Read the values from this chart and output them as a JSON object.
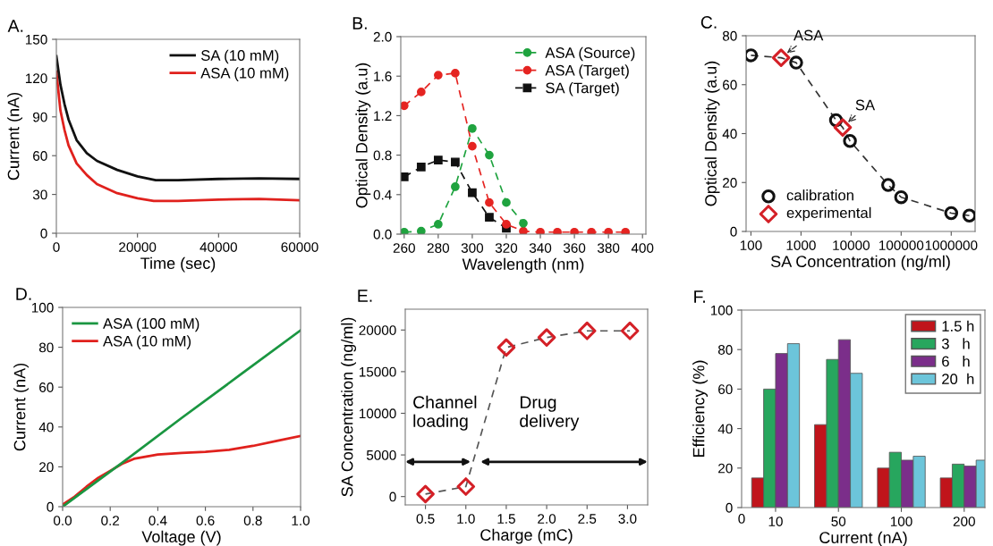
{
  "chart_data": [
    {
      "type": "line",
      "title": "A.",
      "xlabel": "Time (sec)",
      "ylabel": "Current (nA)",
      "xlim": [
        0,
        60000
      ],
      "xticks": [
        0,
        20000,
        40000,
        60000
      ],
      "ylim": [
        0,
        150
      ],
      "yticks": [
        0,
        30,
        60,
        90,
        120,
        150
      ],
      "legend": "top right",
      "series": [
        {
          "name": "SA (10 mM)",
          "color": "#111111",
          "x": [
            0,
            1000,
            2000,
            3000,
            5000,
            7500,
            10000,
            15000,
            20000,
            24500,
            30000,
            40000,
            50000,
            60000
          ],
          "values": [
            137,
            115,
            100,
            88,
            72,
            62,
            56,
            49,
            44,
            41,
            41,
            42,
            42.5,
            42
          ]
        },
        {
          "name": "ASA (10 mM)",
          "color": "#e0211d",
          "x": [
            0,
            1000,
            2000,
            3000,
            5000,
            7500,
            10000,
            15000,
            20000,
            24000,
            30000,
            40000,
            50000,
            60000
          ],
          "values": [
            125,
            95,
            80,
            68,
            54,
            45,
            38,
            31,
            27,
            25,
            25,
            26,
            26.5,
            25.5
          ]
        }
      ]
    },
    {
      "type": "line",
      "title": "B.",
      "xlabel": "Wavelength (nm)",
      "ylabel": "Optical Density (a.u)",
      "xlim": [
        258,
        402
      ],
      "xticks": [
        260,
        280,
        300,
        320,
        340,
        360,
        380,
        400
      ],
      "ylim": [
        0,
        2.0
      ],
      "yticks": [
        {
          "value": 0,
          "label": "0.0"
        },
        0.4,
        0.8,
        1.2,
        1.6,
        {
          "value": 2,
          "label": "2.0"
        }
      ],
      "legend": "top right",
      "line_style": "dashed",
      "series": [
        {
          "name": "ASA (Source)",
          "color": "#1fa33f",
          "marker": "circle",
          "x": [
            260,
            270,
            280,
            290,
            300,
            310,
            320,
            330
          ],
          "values": [
            0.02,
            0.03,
            0.1,
            0.48,
            1.07,
            0.8,
            0.32,
            0.11
          ]
        },
        {
          "name": "ASA (Target)",
          "color": "#e52421",
          "marker": "circle",
          "x": [
            260,
            270,
            280,
            290,
            300,
            310,
            320,
            330,
            340,
            350,
            360,
            370,
            380,
            390
          ],
          "values": [
            1.3,
            1.44,
            1.61,
            1.63,
            0.89,
            0.32,
            0.1,
            0.03,
            0.02,
            0.02,
            0.02,
            0.02,
            0.02,
            0.02
          ]
        },
        {
          "name": "SA (Target)",
          "color": "#111111",
          "marker": "square",
          "x": [
            260,
            270,
            280,
            290,
            300,
            310,
            320
          ],
          "values": [
            0.58,
            0.68,
            0.75,
            0.73,
            0.42,
            0.17,
            0.06
          ]
        }
      ]
    },
    {
      "type": "scatter",
      "title": "C.",
      "xlabel": "SA Concentration (ng/ml)",
      "ylabel": "Optical Density (a.u)",
      "log": "x",
      "xlim": [
        80,
        3000000
      ],
      "xticks": [
        100,
        1000,
        10000,
        100000,
        1000000
      ],
      "ylim": [
        0,
        80
      ],
      "yticks": [
        0,
        20,
        40,
        60,
        80
      ],
      "legend": "bottom left",
      "annotations": [
        {
          "text": "ASA",
          "x": 400,
          "y": 71
        },
        {
          "text": "SA",
          "x": 6800,
          "y": 42.5
        }
      ],
      "series": [
        {
          "type": "line",
          "color": "#333333",
          "line_style": "dashed",
          "x": [
            100,
            400,
            800,
            5000,
            6800,
            9500,
            55000,
            100000,
            1000000,
            2300000
          ],
          "values": [
            72,
            71,
            69,
            45.5,
            42.5,
            37,
            19,
            14,
            7.5,
            6.5
          ]
        },
        {
          "name": "calibration",
          "color": "#111111",
          "marker": "circle",
          "x": [
            100,
            800,
            5000,
            9500,
            55000,
            100000,
            1000000,
            2300000
          ],
          "values": [
            72,
            69,
            45.5,
            37,
            19,
            14,
            7.5,
            6.5
          ]
        },
        {
          "name": "experimental",
          "color": "#d42027",
          "marker": "diamond",
          "x": [
            400,
            6800
          ],
          "values": [
            71,
            42.5
          ]
        }
      ]
    },
    {
      "type": "line",
      "title": "D.",
      "xlabel": "Voltage (V)",
      "ylabel": "Current (nA)",
      "xlim": [
        0,
        1.0
      ],
      "xticks": [
        {
          "value": 0,
          "label": "0.0"
        },
        0.2,
        0.4,
        0.6,
        0.8,
        {
          "value": 1,
          "label": "1.0"
        }
      ],
      "ylim": [
        0,
        100
      ],
      "yticks": [
        0,
        20,
        40,
        60,
        80,
        100
      ],
      "legend": "top left",
      "series": [
        {
          "name": "ASA (100 mM)",
          "color": "#1a9641",
          "x": [
            0,
            0.25,
            0.5,
            0.75,
            1.0
          ],
          "values": [
            0,
            22,
            44.5,
            66.5,
            88.5
          ]
        },
        {
          "name": "ASA (10 mM)",
          "color": "#e0211d",
          "x": [
            0,
            0.05,
            0.1,
            0.15,
            0.2,
            0.25,
            0.3,
            0.4,
            0.5,
            0.6,
            0.7,
            0.8,
            0.9,
            1.0
          ],
          "values": [
            1,
            5,
            10,
            14.5,
            18,
            21.5,
            24,
            26.2,
            27,
            27.5,
            28.5,
            30.5,
            33,
            35.5
          ]
        }
      ]
    },
    {
      "type": "scatter",
      "title": "E.",
      "xlabel": "Charge (mC)",
      "ylabel": "SA Concentration (ng/ml)",
      "xlim": [
        0.25,
        3.25
      ],
      "xticks": [
        0.5,
        {
          "value": 1,
          "label": "1.0"
        },
        1.5,
        {
          "value": 2,
          "label": "2.0"
        },
        2.5,
        {
          "value": 3,
          "label": "3.0"
        }
      ],
      "ylim": [
        -1000,
        22500
      ],
      "yticks": [
        0,
        5000,
        10000,
        15000,
        20000
      ],
      "annotations": [
        "Channel\nloading",
        "Drug\ndelivery"
      ],
      "series": [
        {
          "type": "line",
          "color": "#555555",
          "line_style": "dashed",
          "x": [
            0.5,
            1.0,
            1.5,
            2.0,
            2.5,
            3.03
          ],
          "values": [
            300,
            1200,
            17900,
            19100,
            19900,
            19900
          ]
        },
        {
          "color": "#d42027",
          "marker": "diamond",
          "x": [
            0.5,
            1.0,
            1.5,
            2.0,
            2.5,
            3.03
          ],
          "values": [
            300,
            1200,
            17900,
            19100,
            19900,
            19900
          ]
        }
      ]
    },
    {
      "type": "bar",
      "title": "F.",
      "xlabel": "Current (nA)",
      "ylabel": "Efficiency (%)",
      "categories": [
        "10",
        "50",
        "100",
        "200"
      ],
      "annotations": [
        "0"
      ],
      "ylim": [
        0,
        100
      ],
      "yticks": [
        0,
        20,
        40,
        60,
        80,
        100
      ],
      "legend": "top right",
      "series": [
        {
          "name": "1.5 h",
          "color": "#c0141b",
          "values": [
            15,
            42,
            20,
            15
          ]
        },
        {
          "name": "3   h",
          "color": "#27a65e",
          "values": [
            60,
            75,
            28,
            22
          ]
        },
        {
          "name": "6   h",
          "color": "#7b2e8a",
          "values": [
            78,
            85,
            24,
            21
          ]
        },
        {
          "name": "20  h",
          "color": "#6cc5da",
          "values": [
            83,
            68,
            26,
            24
          ]
        }
      ]
    }
  ]
}
